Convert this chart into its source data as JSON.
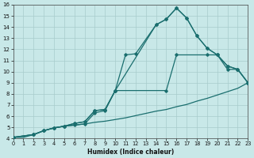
{
  "xlabel": "Humidex (Indice chaleur)",
  "bg_color": "#c8e8e8",
  "grid_color": "#a8cccc",
  "line_color": "#1a6e6e",
  "xlim": [
    0,
    23
  ],
  "ylim": [
    4,
    16
  ],
  "xticks": [
    0,
    1,
    2,
    3,
    4,
    5,
    6,
    7,
    8,
    9,
    10,
    11,
    12,
    13,
    14,
    15,
    16,
    17,
    18,
    19,
    20,
    21,
    22,
    23
  ],
  "yticks": [
    4,
    5,
    6,
    7,
    8,
    9,
    10,
    11,
    12,
    13,
    14,
    15,
    16
  ],
  "lines": [
    {
      "x": [
        0,
        1,
        2,
        3,
        4,
        5,
        6,
        7,
        8,
        9,
        10,
        11,
        12,
        13,
        14,
        15,
        16,
        17,
        18,
        19,
        20,
        21,
        22,
        23
      ],
      "y": [
        4.1,
        4.1,
        4.35,
        4.7,
        4.95,
        5.1,
        5.2,
        5.3,
        5.45,
        5.55,
        5.7,
        5.85,
        6.05,
        6.25,
        6.45,
        6.6,
        6.85,
        7.05,
        7.35,
        7.6,
        7.9,
        8.2,
        8.5,
        9.0
      ],
      "marker": false,
      "lw": 0.9
    },
    {
      "x": [
        0,
        2,
        3,
        4,
        5,
        6,
        7,
        8,
        9,
        10,
        15,
        16,
        19,
        20,
        21,
        22,
        23
      ],
      "y": [
        4.1,
        4.35,
        4.7,
        4.95,
        5.1,
        5.2,
        5.3,
        6.3,
        6.5,
        8.3,
        8.3,
        11.5,
        11.5,
        11.5,
        10.2,
        10.2,
        9.0
      ],
      "marker": true,
      "lw": 0.9
    },
    {
      "x": [
        0,
        2,
        3,
        4,
        5,
        6,
        7,
        8,
        9,
        10,
        11,
        12,
        14,
        15,
        16,
        17,
        18,
        19,
        20,
        21,
        22,
        23
      ],
      "y": [
        4.1,
        4.35,
        4.7,
        4.95,
        5.1,
        5.35,
        5.5,
        6.5,
        6.6,
        8.3,
        11.5,
        11.6,
        14.2,
        14.7,
        15.7,
        14.8,
        13.2,
        12.1,
        11.5,
        10.5,
        10.2,
        9.0
      ],
      "marker": true,
      "lw": 0.9
    },
    {
      "x": [
        0,
        2,
        3,
        4,
        5,
        6,
        7,
        8,
        9,
        10,
        14,
        15,
        16,
        17,
        18,
        19,
        20,
        21,
        22,
        23
      ],
      "y": [
        4.1,
        4.35,
        4.7,
        4.95,
        5.1,
        5.35,
        5.5,
        6.5,
        6.6,
        8.3,
        14.2,
        14.7,
        15.7,
        14.8,
        13.2,
        12.1,
        11.5,
        10.5,
        10.2,
        9.0
      ],
      "marker": true,
      "lw": 0.9
    }
  ]
}
